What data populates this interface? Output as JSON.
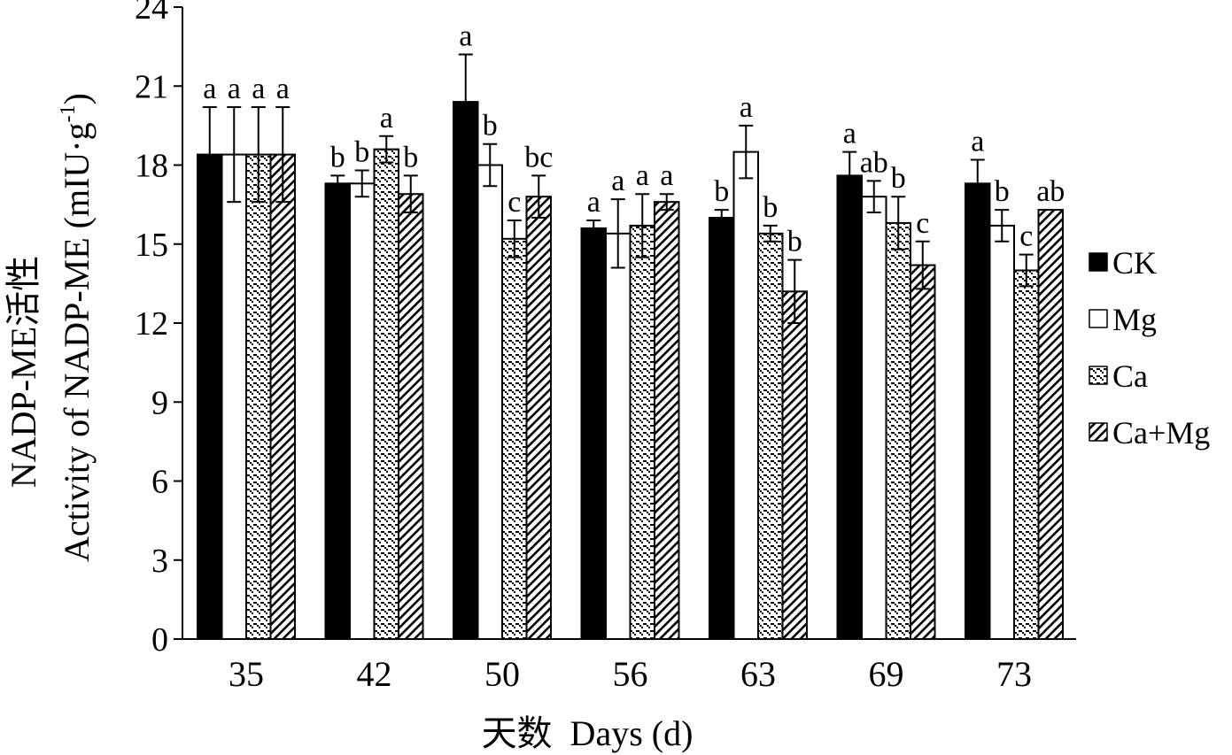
{
  "chart_data": {
    "type": "bar",
    "xlabel": "天数  Days (d)",
    "ylabel_cn": "NADP-ME活性",
    "ylabel_en": "Activity of NADP-ME (mIU·g",
    "ylabel_sup": "-1",
    "ylabel_close": ")",
    "ylim": [
      0,
      24
    ],
    "yticks": [
      "0",
      "3",
      "6",
      "9",
      "12",
      "15",
      "18",
      "21",
      "24"
    ],
    "categories": [
      "35",
      "42",
      "50",
      "56",
      "63",
      "69",
      "73"
    ],
    "series": [
      {
        "name": "CK",
        "pattern": "solid",
        "values": [
          18.4,
          17.3,
          20.4,
          15.6,
          16.0,
          17.6,
          17.3
        ],
        "errors": [
          1.8,
          0.3,
          1.8,
          0.3,
          0.3,
          0.9,
          0.9
        ],
        "letters": [
          "a",
          "b",
          "a",
          "a",
          "b",
          "a",
          "a"
        ]
      },
      {
        "name": "Mg",
        "pattern": "open",
        "values": [
          18.4,
          17.3,
          18.0,
          15.4,
          18.5,
          16.8,
          15.7
        ],
        "errors": [
          1.8,
          0.5,
          0.8,
          1.3,
          1.0,
          0.6,
          0.6
        ],
        "letters": [
          "a",
          "b",
          "b",
          "a",
          "a",
          "ab",
          "b"
        ]
      },
      {
        "name": "Ca",
        "pattern": "dots",
        "values": [
          18.4,
          18.6,
          15.2,
          15.7,
          15.4,
          15.8,
          14.0
        ],
        "errors": [
          1.8,
          0.5,
          0.7,
          1.2,
          0.3,
          1.0,
          0.6
        ],
        "letters": [
          "a",
          "a",
          "c",
          "a",
          "b",
          "b",
          "c"
        ]
      },
      {
        "name": "Ca+Mg",
        "pattern": "hatch",
        "values": [
          18.4,
          16.9,
          16.8,
          16.6,
          13.2,
          14.2,
          16.3
        ],
        "errors": [
          1.8,
          0.7,
          0.8,
          0.3,
          1.2,
          0.9,
          0.0
        ],
        "letters": [
          "a",
          "b",
          "bc",
          "a",
          "b",
          "c",
          "ab"
        ]
      }
    ],
    "legend_position": "right",
    "grid": false
  }
}
